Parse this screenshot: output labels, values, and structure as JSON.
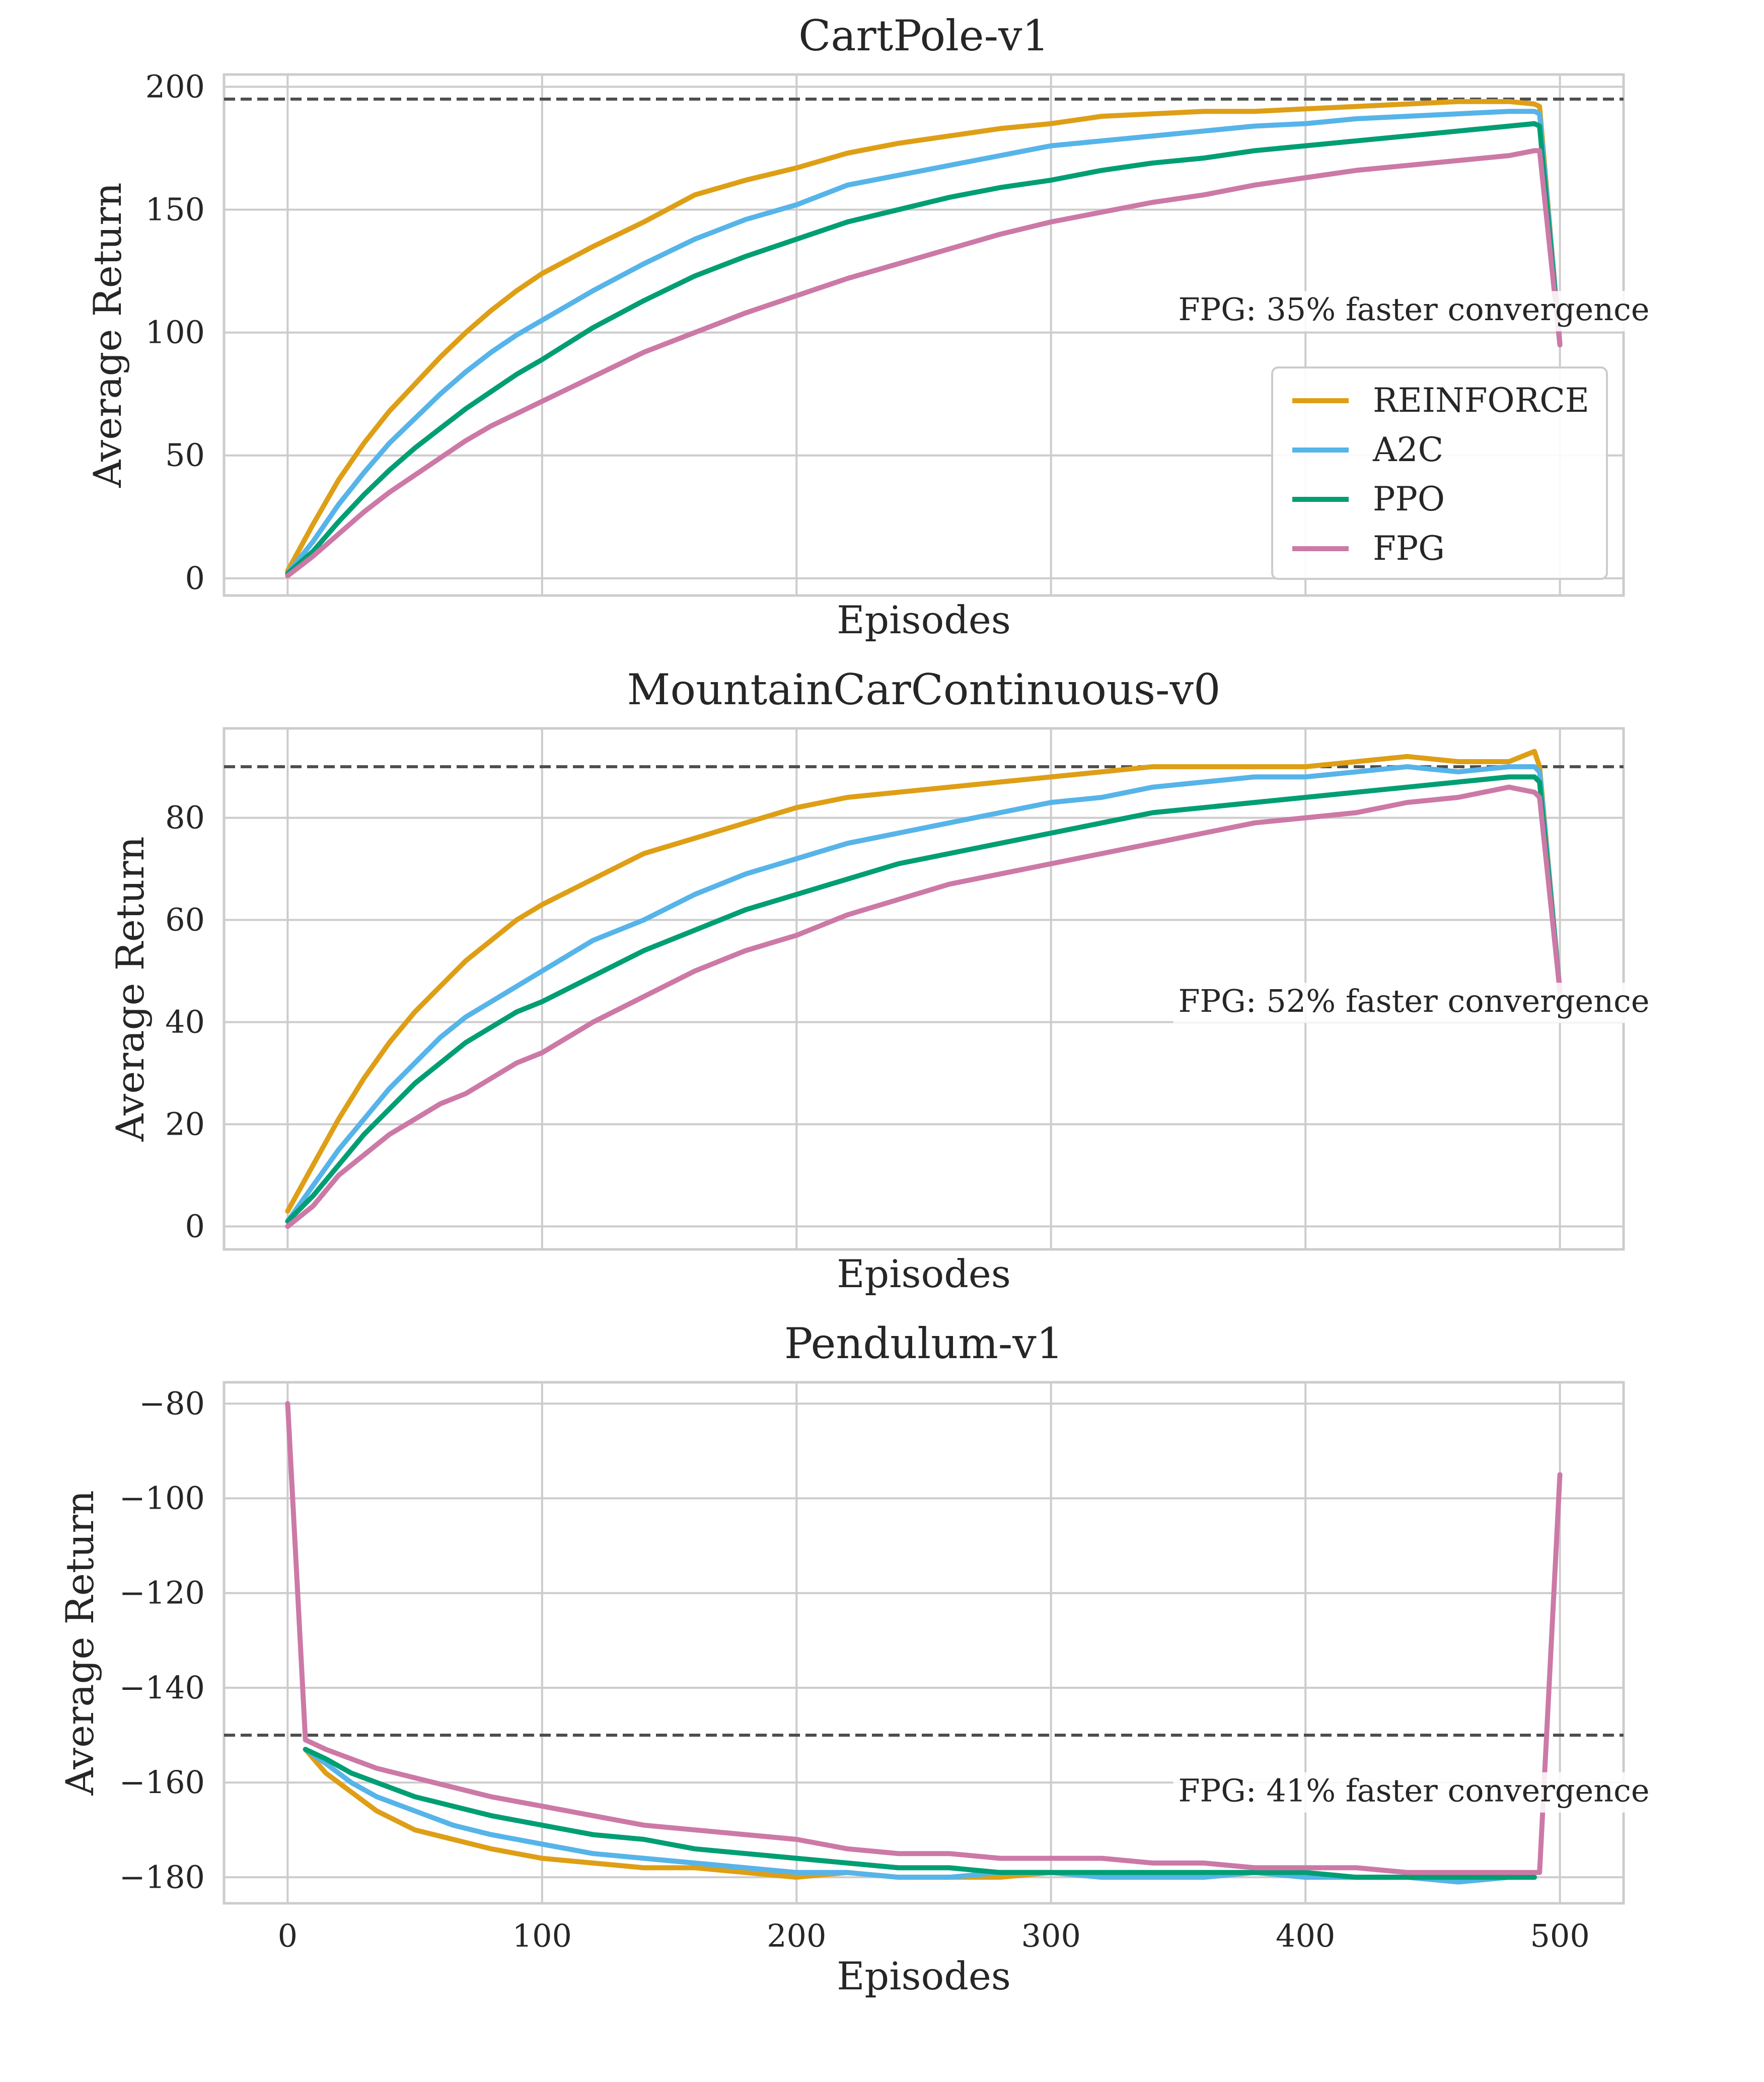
{
  "colors": {
    "REINFORCE": "#de9f16",
    "A2C": "#56b4e9",
    "PPO": "#009e73",
    "FPG": "#cc79a7",
    "threshold": "#4d4d4d",
    "grid": "#cccccc",
    "frame": "#cccccc"
  },
  "legend_entries": [
    "REINFORCE",
    "A2C",
    "PPO",
    "FPG"
  ],
  "chart_data": [
    {
      "type": "line",
      "title": "CartPole-v1",
      "xlabel": "Episodes",
      "ylabel": "Average Return",
      "xlim": [
        -25,
        525
      ],
      "ylim": [
        -7,
        205
      ],
      "xticks": [
        0,
        100,
        200,
        300,
        400,
        500
      ],
      "show_xtick_labels": false,
      "yticks": [
        0,
        50,
        100,
        150,
        200
      ],
      "ytick_labels": [
        "0",
        "50",
        "100",
        "150",
        "200"
      ],
      "threshold": 195,
      "annotation": "FPG: 35% faster convergence",
      "annotation_at": [
        350,
        105
      ],
      "legend": "lower right",
      "grid": true,
      "series": [
        {
          "name": "REINFORCE",
          "x": [
            0,
            10,
            20,
            30,
            40,
            50,
            60,
            70,
            80,
            90,
            100,
            120,
            140,
            160,
            180,
            200,
            220,
            240,
            260,
            280,
            300,
            320,
            340,
            360,
            380,
            400,
            420,
            440,
            460,
            480,
            490,
            492,
            500
          ],
          "y": [
            3,
            22,
            40,
            55,
            68,
            79,
            90,
            100,
            109,
            117,
            124,
            135,
            145,
            156,
            162,
            167,
            173,
            177,
            180,
            183,
            185,
            188,
            189,
            190,
            190,
            191,
            192,
            193,
            194,
            194,
            193,
            192,
            95
          ]
        },
        {
          "name": "A2C",
          "x": [
            0,
            10,
            20,
            30,
            40,
            50,
            60,
            70,
            80,
            90,
            100,
            120,
            140,
            160,
            180,
            200,
            220,
            240,
            260,
            280,
            300,
            320,
            340,
            360,
            380,
            400,
            420,
            440,
            460,
            480,
            490,
            492,
            500
          ],
          "y": [
            2,
            15,
            30,
            43,
            55,
            65,
            75,
            84,
            92,
            99,
            105,
            117,
            128,
            138,
            146,
            152,
            160,
            164,
            168,
            172,
            176,
            178,
            180,
            182,
            184,
            185,
            187,
            188,
            189,
            190,
            190,
            189,
            95
          ]
        },
        {
          "name": "PPO",
          "x": [
            0,
            10,
            20,
            30,
            40,
            50,
            60,
            70,
            80,
            90,
            100,
            120,
            140,
            160,
            180,
            200,
            220,
            240,
            260,
            280,
            300,
            320,
            340,
            360,
            380,
            400,
            420,
            440,
            460,
            480,
            490,
            492,
            500
          ],
          "y": [
            2,
            11,
            23,
            34,
            44,
            53,
            61,
            69,
            76,
            83,
            89,
            102,
            113,
            123,
            131,
            138,
            145,
            150,
            155,
            159,
            162,
            166,
            169,
            171,
            174,
            176,
            178,
            180,
            182,
            184,
            185,
            184,
            95
          ]
        },
        {
          "name": "FPG",
          "x": [
            0,
            10,
            20,
            30,
            40,
            50,
            60,
            70,
            80,
            90,
            100,
            120,
            140,
            160,
            180,
            200,
            220,
            240,
            260,
            280,
            300,
            320,
            340,
            360,
            380,
            400,
            420,
            440,
            460,
            480,
            490,
            492,
            500
          ],
          "y": [
            1,
            9,
            18,
            27,
            35,
            42,
            49,
            56,
            62,
            67,
            72,
            82,
            92,
            100,
            108,
            115,
            122,
            128,
            134,
            140,
            145,
            149,
            153,
            156,
            160,
            163,
            166,
            168,
            170,
            172,
            174,
            174,
            95
          ]
        }
      ]
    },
    {
      "type": "line",
      "title": "MountainCarContinuous-v0",
      "xlabel": "Episodes",
      "ylabel": "Average Return",
      "xlim": [
        -25,
        525
      ],
      "ylim": [
        -4.5,
        97.5
      ],
      "xticks": [
        0,
        100,
        200,
        300,
        400,
        500
      ],
      "show_xtick_labels": false,
      "yticks": [
        0,
        20,
        40,
        60,
        80
      ],
      "ytick_labels": [
        "0",
        "20",
        "40",
        "60",
        "80"
      ],
      "threshold": 90,
      "annotation": "FPG: 52% faster convergence",
      "annotation_at": [
        350,
        42
      ],
      "grid": true,
      "series": [
        {
          "name": "REINFORCE",
          "x": [
            0,
            10,
            20,
            30,
            40,
            50,
            60,
            70,
            80,
            90,
            100,
            120,
            140,
            160,
            180,
            200,
            220,
            240,
            260,
            280,
            300,
            320,
            340,
            360,
            380,
            400,
            420,
            440,
            460,
            480,
            490,
            492,
            500
          ],
          "y": [
            3,
            12,
            21,
            29,
            36,
            42,
            47,
            52,
            56,
            60,
            63,
            68,
            73,
            76,
            79,
            82,
            84,
            85,
            86,
            87,
            88,
            89,
            90,
            90,
            90,
            90,
            91,
            92,
            91,
            91,
            93,
            90,
            46
          ]
        },
        {
          "name": "A2C",
          "x": [
            0,
            10,
            20,
            30,
            40,
            50,
            60,
            70,
            80,
            90,
            100,
            120,
            140,
            160,
            180,
            200,
            220,
            240,
            260,
            280,
            300,
            320,
            340,
            360,
            380,
            400,
            420,
            440,
            460,
            480,
            490,
            492,
            500
          ],
          "y": [
            1,
            8,
            15,
            21,
            27,
            32,
            37,
            41,
            44,
            47,
            50,
            56,
            60,
            65,
            69,
            72,
            75,
            77,
            79,
            81,
            83,
            84,
            86,
            87,
            88,
            88,
            89,
            90,
            89,
            90,
            90,
            89,
            46
          ]
        },
        {
          "name": "PPO",
          "x": [
            0,
            10,
            20,
            30,
            40,
            50,
            60,
            70,
            80,
            90,
            100,
            120,
            140,
            160,
            180,
            200,
            220,
            240,
            260,
            280,
            300,
            320,
            340,
            360,
            380,
            400,
            420,
            440,
            460,
            480,
            490,
            492,
            500
          ],
          "y": [
            1,
            6,
            12,
            18,
            23,
            28,
            32,
            36,
            39,
            42,
            44,
            49,
            54,
            58,
            62,
            65,
            68,
            71,
            73,
            75,
            77,
            79,
            81,
            82,
            83,
            84,
            85,
            86,
            87,
            88,
            88,
            87,
            46
          ]
        },
        {
          "name": "FPG",
          "x": [
            0,
            10,
            20,
            30,
            40,
            50,
            60,
            70,
            80,
            90,
            100,
            120,
            140,
            160,
            180,
            200,
            220,
            240,
            260,
            280,
            300,
            320,
            340,
            360,
            380,
            400,
            420,
            440,
            460,
            480,
            490,
            492,
            500
          ],
          "y": [
            0,
            4,
            10,
            14,
            18,
            21,
            24,
            26,
            29,
            32,
            34,
            40,
            45,
            50,
            54,
            57,
            61,
            64,
            67,
            69,
            71,
            73,
            75,
            77,
            79,
            80,
            81,
            83,
            84,
            86,
            85,
            84,
            46
          ]
        }
      ]
    },
    {
      "type": "line",
      "title": "Pendulum-v1",
      "xlabel": "Episodes",
      "ylabel": "Average Return",
      "xlim": [
        -25,
        525
      ],
      "ylim": [
        -185.5,
        -75.5
      ],
      "xticks": [
        0,
        100,
        200,
        300,
        400,
        500
      ],
      "xtick_labels": [
        "0",
        "100",
        "200",
        "300",
        "400",
        "500"
      ],
      "show_xtick_labels": true,
      "yticks": [
        -80,
        -100,
        -120,
        -140,
        -160,
        -180
      ],
      "ytick_labels": [
        "−80",
        "−100",
        "−120",
        "−140",
        "−160",
        "−180"
      ],
      "threshold": -150,
      "annotation": "FPG: 41% faster convergence",
      "annotation_at": [
        350,
        -164
      ],
      "grid": true,
      "series": [
        {
          "name": "REINFORCE",
          "x": [
            7,
            15,
            25,
            35,
            50,
            65,
            80,
            100,
            120,
            140,
            160,
            180,
            200,
            220,
            240,
            260,
            280,
            300,
            320,
            340,
            360,
            380,
            400,
            420,
            440,
            460,
            480,
            490
          ],
          "y": [
            -153,
            -158,
            -162,
            -166,
            -170,
            -172,
            -174,
            -176,
            -177,
            -178,
            -178,
            -179,
            -180,
            -179,
            -180,
            -180,
            -180,
            -179,
            -180,
            -180,
            -180,
            -179,
            -180,
            -180,
            -180,
            -180,
            -180,
            -180
          ]
        },
        {
          "name": "A2C",
          "x": [
            7,
            15,
            25,
            35,
            50,
            65,
            80,
            100,
            120,
            140,
            160,
            180,
            200,
            220,
            240,
            260,
            280,
            300,
            320,
            340,
            360,
            380,
            400,
            420,
            440,
            460,
            480,
            490
          ],
          "y": [
            -153,
            -156,
            -160,
            -163,
            -166,
            -169,
            -171,
            -173,
            -175,
            -176,
            -177,
            -178,
            -179,
            -179,
            -180,
            -180,
            -179,
            -179,
            -180,
            -180,
            -180,
            -179,
            -180,
            -180,
            -180,
            -181,
            -180,
            -180
          ]
        },
        {
          "name": "PPO",
          "x": [
            7,
            15,
            25,
            35,
            50,
            65,
            80,
            100,
            120,
            140,
            160,
            180,
            200,
            220,
            240,
            260,
            280,
            300,
            320,
            340,
            360,
            380,
            400,
            420,
            440,
            460,
            480,
            490
          ],
          "y": [
            -153,
            -155,
            -158,
            -160,
            -163,
            -165,
            -167,
            -169,
            -171,
            -172,
            -174,
            -175,
            -176,
            -177,
            -178,
            -178,
            -179,
            -179,
            -179,
            -179,
            -179,
            -179,
            -179,
            -180,
            -180,
            -180,
            -180,
            -180
          ]
        },
        {
          "name": "FPG",
          "x": [
            0,
            7,
            15,
            25,
            35,
            50,
            65,
            80,
            100,
            120,
            140,
            160,
            180,
            200,
            220,
            240,
            260,
            280,
            300,
            320,
            340,
            360,
            380,
            400,
            420,
            440,
            460,
            480,
            490,
            492,
            500
          ],
          "y": [
            -80,
            -151,
            -153,
            -155,
            -157,
            -159,
            -161,
            -163,
            -165,
            -167,
            -169,
            -170,
            -171,
            -172,
            -174,
            -175,
            -175,
            -176,
            -176,
            -176,
            -177,
            -177,
            -178,
            -178,
            -178,
            -179,
            -179,
            -179,
            -179,
            -179,
            -95
          ]
        }
      ]
    }
  ]
}
